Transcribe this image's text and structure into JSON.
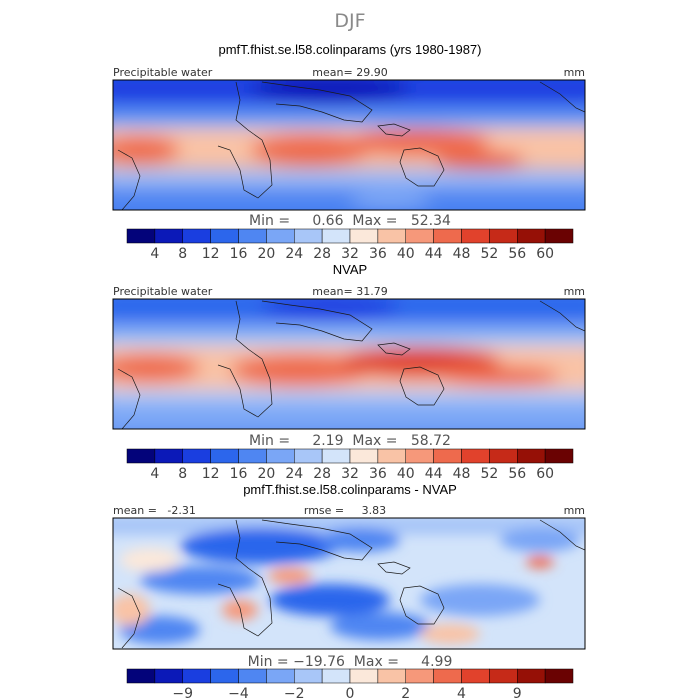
{
  "page": {
    "title": "DJF",
    "colors": {
      "seq": [
        "#03037a",
        "#0b19b8",
        "#1a3ee0",
        "#2c66ec",
        "#4f86f2",
        "#7aa6f6",
        "#a8c6f8",
        "#d3e4fa",
        "#fbe8da",
        "#f9c3a6",
        "#f6987a",
        "#ee6a4d",
        "#e1422c",
        "#c62a18",
        "#961006",
        "#6a0202"
      ],
      "diff": [
        "#03037a",
        "#0b19b8",
        "#1a3ee0",
        "#2c66ec",
        "#4f86f2",
        "#7aa6f6",
        "#a8c6f8",
        "#d3e4fa",
        "#fbe8da",
        "#f9c3a6",
        "#f6987a",
        "#ee6a4d",
        "#e1422c",
        "#c62a18",
        "#961006",
        "#6a0202"
      ],
      "land_outline": "#1a1a1a"
    }
  },
  "chart_data": [
    {
      "type": "heatmap",
      "title": "pmfT.fhist.se.l58.colinparams (yrs 1980-1987)",
      "left_label": "Precipitable water",
      "center_label": "mean=   29.90",
      "right_label": "mm",
      "variable": "Precipitable water",
      "units": "mm",
      "mean": 29.9,
      "min": 0.66,
      "max": 52.34,
      "minmax_text": "Min =     0.66  Max =   52.34",
      "colorbar_levels": [
        4,
        8,
        12,
        16,
        20,
        24,
        28,
        32,
        36,
        40,
        44,
        48,
        52,
        56,
        60
      ],
      "colorbar_ticks": [
        "4",
        "8",
        "12",
        "16",
        "20",
        "24",
        "28",
        "32",
        "36",
        "40",
        "44",
        "48",
        "52",
        "56",
        "60"
      ]
    },
    {
      "type": "heatmap",
      "title": "NVAP",
      "left_label": "Precipitable water",
      "center_label": "mean=   31.79",
      "right_label": "mm",
      "variable": "Precipitable water",
      "units": "mm",
      "mean": 31.79,
      "min": 2.19,
      "max": 58.72,
      "minmax_text": "Min =     2.19  Max =   58.72",
      "colorbar_levels": [
        4,
        8,
        12,
        16,
        20,
        24,
        28,
        32,
        36,
        40,
        44,
        48,
        52,
        56,
        60
      ],
      "colorbar_ticks": [
        "4",
        "8",
        "12",
        "16",
        "20",
        "24",
        "28",
        "32",
        "36",
        "40",
        "44",
        "48",
        "52",
        "56",
        "60"
      ]
    },
    {
      "type": "heatmap",
      "title": "pmfT.fhist.se.l58.colinparams - NVAP",
      "left_label": "mean =   -2.31",
      "center_label": "rmse =     3.83",
      "right_label": "mm",
      "mean": -2.31,
      "rmse": 3.83,
      "units": "mm",
      "min": -19.76,
      "max": 4.99,
      "minmax_text": "Min = −19.76  Max =     4.99",
      "colorbar_levels": [
        -12,
        -9,
        -6,
        -4,
        -3,
        -2,
        -1,
        0,
        1,
        2,
        3,
        4,
        6,
        9,
        12
      ],
      "colorbar_ticks": [
        "−9",
        "−4",
        "−2",
        "0",
        "2",
        "4",
        "9"
      ],
      "colorbar_tick_levels": [
        -9,
        -4,
        -2,
        0,
        2,
        4,
        9
      ]
    }
  ]
}
